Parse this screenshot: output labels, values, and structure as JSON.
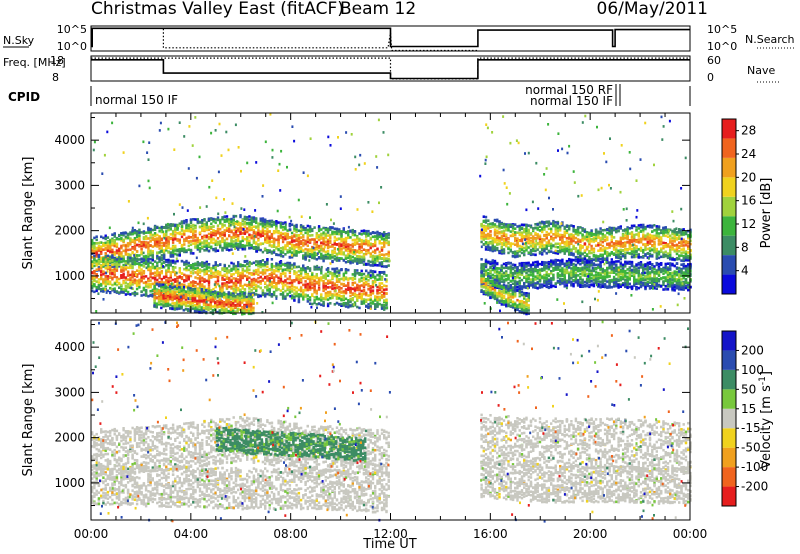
{
  "header": {
    "title": "Christmas Valley East (fitACF)",
    "beam": "Beam 12",
    "date": "06/May/2011"
  },
  "colors": {
    "power": [
      "#0a0adc",
      "#2a4cb0",
      "#3c8c64",
      "#3cb43c",
      "#a0d23c",
      "#f0d21e",
      "#f0a01e",
      "#f0641e",
      "#e61e1e"
    ],
    "velocity": [
      "#e61e1e",
      "#f0641e",
      "#f0a01e",
      "#f0d21e",
      "#c8c8c0",
      "#78c83c",
      "#3c8c64",
      "#2a4cb0",
      "#1414c8"
    ],
    "ground_scatter": "#c8c8c0"
  },
  "chart_data": [
    {
      "type": "line",
      "panel": "nsky",
      "ylabel": "N.Sky",
      "right_label": "N.Search",
      "left_ticks": [
        "10^5",
        "10^0"
      ],
      "right_ticks": [
        "10^5",
        "10^0"
      ],
      "series": [
        {
          "style": "solid",
          "x": [
            0,
            0.05,
            0.05,
            12.0,
            12.0,
            15.5,
            15.5,
            20.9,
            20.9,
            21.0,
            21.0,
            24.0
          ],
          "y": [
            1,
            1,
            5,
            5,
            1,
            1,
            4.6,
            4.6,
            1,
            1,
            4.7,
            4.7
          ]
        },
        {
          "style": "dotted",
          "x": [
            2.9,
            2.9,
            11.9,
            12.0,
            12.05,
            15.5
          ],
          "y": [
            4.9,
            0.7,
            0.7,
            4.0,
            0.1,
            0.1
          ]
        }
      ]
    },
    {
      "type": "line",
      "panel": "freq",
      "ylabel": "Freq. [MHz]",
      "right_label": "Nave",
      "left_ticks": [
        "18",
        "8"
      ],
      "right_ticks": [
        "60",
        "0"
      ],
      "series": [
        {
          "style": "solid",
          "x": [
            0,
            2.9,
            2.9,
            12.0,
            12.0,
            15.5,
            15.5,
            24.0
          ],
          "y": [
            17.2,
            17.2,
            10.8,
            10.8,
            8.2,
            8.2,
            17.2,
            17.2
          ]
        },
        {
          "style": "dotted",
          "x": [
            0,
            12.0,
            12.0,
            15.5,
            15.5,
            24.0
          ],
          "y": [
            18,
            18,
            8,
            8,
            18,
            18
          ]
        }
      ]
    },
    {
      "type": "table",
      "panel": "cpid",
      "ylabel": "CPID",
      "segments": [
        {
          "label": "normal 150 IF",
          "align": "left",
          "x": 0.05
        },
        {
          "label": "normal 150 RF",
          "align": "right",
          "x": 21.0
        },
        {
          "label": "normal 150 IF",
          "align": "right",
          "x": 21.0
        }
      ]
    },
    {
      "type": "heatmap",
      "panel": "power",
      "ylabel": "Slant Range [km]",
      "yticks": [
        1000,
        2000,
        3000,
        4000
      ],
      "ylim": [
        180,
        4600
      ],
      "xlim": [
        0,
        24
      ],
      "colorbar": {
        "label": "Power [dB]",
        "ticks": [
          4,
          8,
          12,
          16,
          20,
          24,
          28
        ],
        "range": [
          0,
          30
        ]
      },
      "bands": [
        {
          "x": [
            0.0,
            2.0,
            4.0,
            6.0,
            8.0,
            10.0,
            11.9
          ],
          "y": [
            1500,
            1700,
            1900,
            2000,
            1800,
            1700,
            1600
          ],
          "width": 380,
          "peak": 27
        },
        {
          "x": [
            0.0,
            2.0,
            3.5,
            5.5,
            7.0,
            9.0,
            11.8
          ],
          "y": [
            1100,
            1000,
            950,
            900,
            1000,
            800,
            700
          ],
          "width": 420,
          "peak": 28
        },
        {
          "x": [
            2.5,
            4.0,
            5.5,
            6.5
          ],
          "y": [
            600,
            500,
            400,
            380
          ],
          "width": 260,
          "peak": 28
        },
        {
          "x": [
            15.6,
            17.0,
            18.5,
            20.0,
            22.0,
            24.0
          ],
          "y": [
            2000,
            1800,
            1900,
            1700,
            1800,
            1700
          ],
          "width": 360,
          "peak": 25
        },
        {
          "x": [
            15.6,
            17.0,
            19.0,
            21.0,
            24.0
          ],
          "y": [
            1100,
            1000,
            1100,
            1050,
            1000
          ],
          "width": 300,
          "peak": 14
        },
        {
          "x": [
            15.6,
            16.5,
            17.5
          ],
          "y": [
            900,
            600,
            400
          ],
          "width": 240,
          "peak": 22
        }
      ]
    },
    {
      "type": "heatmap",
      "panel": "velocity",
      "xlabel": "Time UT",
      "ylabel": "Slant Range [km]",
      "yticks": [
        1000,
        2000,
        3000,
        4000
      ],
      "ylim": [
        180,
        4600
      ],
      "xlim": [
        0,
        24
      ],
      "xtick_labels": [
        "00:00",
        "04:00",
        "08:00",
        "12:00",
        "16:00",
        "20:00",
        "00:00"
      ],
      "colorbar": {
        "label": "Velocity [m s-1]",
        "tick_labels": [
          "-200",
          "-100",
          "-50",
          "-15",
          "15",
          "50",
          "100",
          "200"
        ]
      },
      "bands": [
        {
          "x": [
            0.0,
            3.0,
            6.0,
            9.0,
            11.9
          ],
          "y": [
            1700,
            1800,
            2000,
            1800,
            1700
          ],
          "width": 500,
          "velocity": 0
        },
        {
          "x": [
            0.0,
            3.0,
            6.0,
            9.0,
            11.9
          ],
          "y": [
            1000,
            950,
            900,
            900,
            800
          ],
          "width": 450,
          "velocity": 0
        },
        {
          "x": [
            5.0,
            7.0,
            9.0,
            11.0
          ],
          "y": [
            2000,
            1900,
            1850,
            1750
          ],
          "width": 260,
          "velocity": 60
        },
        {
          "x": [
            15.6,
            18.0,
            21.0,
            24.0
          ],
          "y": [
            2000,
            1900,
            1900,
            1800
          ],
          "width": 550,
          "velocity": 0
        },
        {
          "x": [
            15.6,
            18.0,
            21.0,
            24.0
          ],
          "y": [
            1100,
            1000,
            1000,
            950
          ],
          "width": 400,
          "velocity": 0
        }
      ]
    }
  ]
}
